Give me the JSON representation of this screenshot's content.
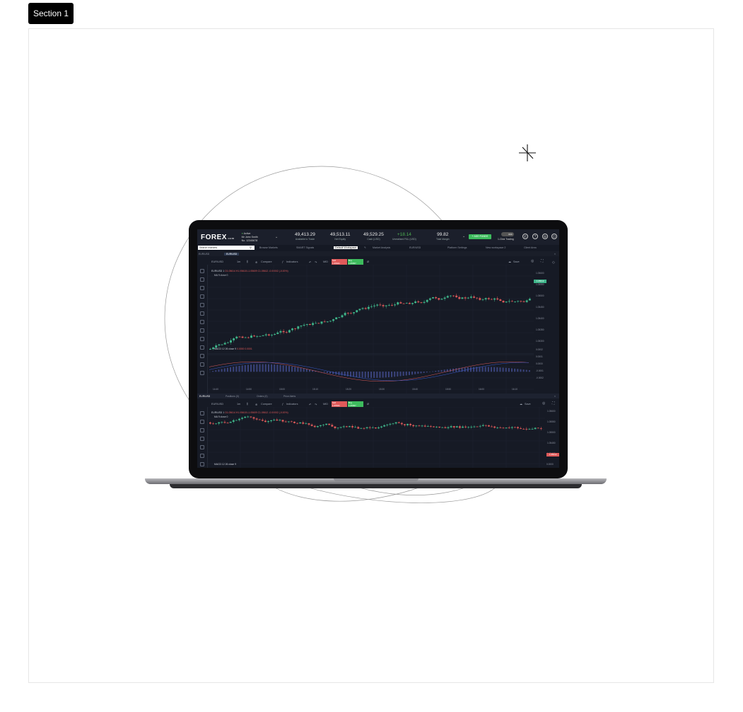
{
  "section_label": "Section 1",
  "header": {
    "logo_main": "FOREX",
    "logo_suffix": ".com",
    "account_status": "Active",
    "account_name": "Mr John Smith",
    "account_no": "No. 12345678",
    "stats": [
      {
        "value": "49,413.29",
        "label": "Available to Trade"
      },
      {
        "value": "49,513.11",
        "label": "Net Equity"
      },
      {
        "value": "49,529.25",
        "label": "Cash (USD)"
      },
      {
        "value": "+18.14",
        "label": "Unrealised P&L (USD)"
      },
      {
        "value": "99.82",
        "label": "Total Margin"
      }
    ],
    "add_funds": "+ ADD FUNDS",
    "toggle": "OFF",
    "one_click": "1-Click Trading"
  },
  "tabs": {
    "search_placeholder": "Search markets",
    "items": [
      "Browse Markets",
      "SMART Signals",
      "Default Workspace",
      "Market Analysis",
      "EUR/USD",
      "Platform Settings",
      "New workspace 2",
      "Client Area"
    ]
  },
  "subtabs": [
    "EUR/USD",
    "EUR/USD"
  ],
  "top_chart": {
    "symbol": "EUR/USD",
    "interval": "1m",
    "compare": "Compare",
    "indicators": "Indicators",
    "mid": "MID",
    "sell_label": "Sell",
    "sell_price": "1.05641",
    "buy_label": "Buy",
    "buy_price": "1.05657",
    "save": "Save",
    "legend": "EUR/USD  1",
    "ohlc": "O1.05614  H1.05618  L1.05609  C1.05612  -0.00002 (-0.00%)",
    "ma": "MA 9 close 0",
    "macd": "MACD 12 26 close 9",
    "macd_values": "0.0000   0.0001",
    "price_axis": [
      "1.05600",
      "1.05550",
      "1.05500",
      "1.05450",
      "1.05400",
      "1.05350",
      "1.05300"
    ],
    "current_price": "1.05612",
    "macd_axis": [
      "0.0002",
      "0.0001",
      "0.0000",
      "-0.0001",
      "-0.0002"
    ],
    "time_axis": [
      "14:40",
      "14:50",
      "15:00",
      "15:10",
      "15:20",
      "15:30",
      "15:40",
      "15:50",
      "16:00",
      "16:10"
    ]
  },
  "panel_tabs": [
    "EUR/USD",
    "Positions (0)",
    "Orders (0)",
    "Price Alerts"
  ],
  "bottom_chart": {
    "symbol": "EUR/USD",
    "interval": "1m",
    "compare": "Compare",
    "indicators": "Indicators",
    "mid": "MID",
    "sell_label": "Sell",
    "sell_price": "1.05641",
    "buy_label": "Buy",
    "buy_price": "1.05657",
    "save": "Save",
    "legend": "EUR/USD  1",
    "ohlc": "O1.05614  H1.05618  L1.05609  C1.05612  -0.00002 (-0.00%)",
    "ma": "MA 9 close 0",
    "macd": "MACD 12 26 close 9",
    "price_axis": [
      "1.05600",
      "1.05550",
      "1.05500",
      "1.05450",
      "1.05400"
    ],
    "current_price": "1.05612",
    "macd_zero": "0.0000"
  },
  "colors": {
    "up": "#3fb58a",
    "down": "#e05a5a",
    "bg": "#161a25",
    "grid": "#1f2433"
  }
}
